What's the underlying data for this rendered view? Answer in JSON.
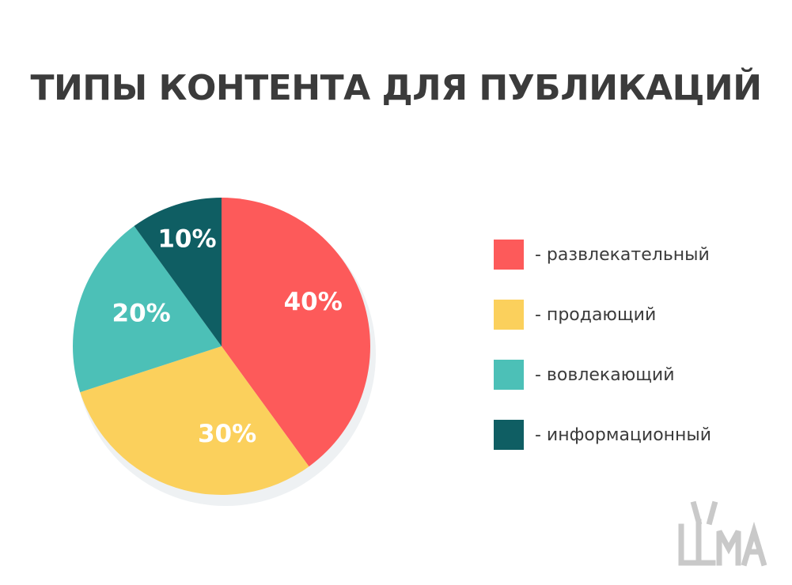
{
  "title": "ТИПЫ КОНТЕНТА ДЛЯ ПУБЛИКАЦИЙ",
  "chart_data": {
    "type": "pie",
    "title": "ТИПЫ КОНТЕНТА ДЛЯ ПУБЛИКАЦИЙ",
    "slices": [
      {
        "label": "- развлекательный",
        "value": 40,
        "display": "40%",
        "color": "#fd5a5a"
      },
      {
        "label": "- продающий",
        "value": 30,
        "display": "30%",
        "color": "#fbd05c"
      },
      {
        "label": "- вовлекающий",
        "value": 20,
        "display": "20%",
        "color": "#4cc0b7"
      },
      {
        "label": "- информационный",
        "value": 10,
        "display": "10%",
        "color": "#0f5e63"
      }
    ],
    "legend_position": "right"
  },
  "logo": {
    "text": "LLAMA",
    "color": "#c9c9c9"
  }
}
